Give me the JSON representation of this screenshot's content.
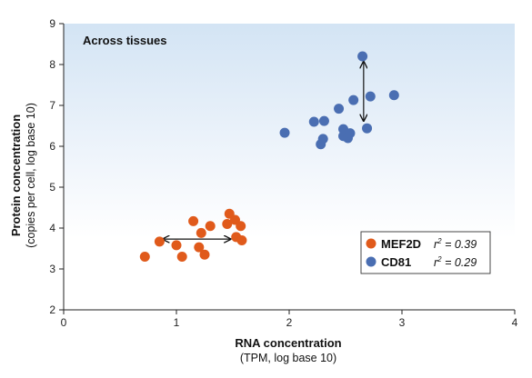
{
  "chart_data": {
    "type": "scatter",
    "title": "Across tissues",
    "xlabel": "RNA concentration",
    "xlabel_sub": "(TPM, log base 10)",
    "ylabel": "Protein concentration",
    "ylabel_sub": "(copies per cell, log base 10)",
    "xlim": [
      0,
      4
    ],
    "ylim": [
      2,
      9
    ],
    "x_ticks": [
      "0",
      "1",
      "2",
      "3",
      "4"
    ],
    "y_ticks": [
      "2",
      "3",
      "4",
      "5",
      "6",
      "7",
      "8",
      "9"
    ],
    "background": "gradient light-blue top to white",
    "legend_position": "bottom-right",
    "series": [
      {
        "name": "MEF2D",
        "r2_label": "r",
        "r2_value": " = 0.39",
        "color": "#e05a1b",
        "points": [
          {
            "x": 0.72,
            "y": 3.3
          },
          {
            "x": 0.85,
            "y": 3.67
          },
          {
            "x": 1.0,
            "y": 3.58
          },
          {
            "x": 1.05,
            "y": 3.3
          },
          {
            "x": 1.15,
            "y": 4.17
          },
          {
            "x": 1.2,
            "y": 3.53
          },
          {
            "x": 1.22,
            "y": 3.88
          },
          {
            "x": 1.25,
            "y": 3.35
          },
          {
            "x": 1.3,
            "y": 4.05
          },
          {
            "x": 1.45,
            "y": 4.1
          },
          {
            "x": 1.47,
            "y": 4.35
          },
          {
            "x": 1.52,
            "y": 4.2
          },
          {
            "x": 1.53,
            "y": 3.78
          },
          {
            "x": 1.57,
            "y": 4.05
          },
          {
            "x": 1.58,
            "y": 3.7
          }
        ]
      },
      {
        "name": "CD81",
        "r2_label": "r",
        "r2_value": " = 0.29",
        "color": "#4a6eb2",
        "points": [
          {
            "x": 1.96,
            "y": 6.33
          },
          {
            "x": 2.22,
            "y": 6.6
          },
          {
            "x": 2.28,
            "y": 6.05
          },
          {
            "x": 2.3,
            "y": 6.18
          },
          {
            "x": 2.31,
            "y": 6.62
          },
          {
            "x": 2.44,
            "y": 6.92
          },
          {
            "x": 2.48,
            "y": 6.25
          },
          {
            "x": 2.48,
            "y": 6.42
          },
          {
            "x": 2.52,
            "y": 6.2
          },
          {
            "x": 2.54,
            "y": 6.32
          },
          {
            "x": 2.57,
            "y": 7.13
          },
          {
            "x": 2.65,
            "y": 8.2
          },
          {
            "x": 2.69,
            "y": 6.44
          },
          {
            "x": 2.72,
            "y": 7.22
          },
          {
            "x": 2.93,
            "y": 7.25
          }
        ]
      }
    ],
    "annotations": [
      {
        "type": "double-arrow-horizontal",
        "x0": 0.88,
        "x1": 1.48,
        "y": 3.73
      },
      {
        "type": "double-arrow-vertical",
        "x": 2.66,
        "y0": 6.62,
        "y1": 8.07
      }
    ]
  }
}
